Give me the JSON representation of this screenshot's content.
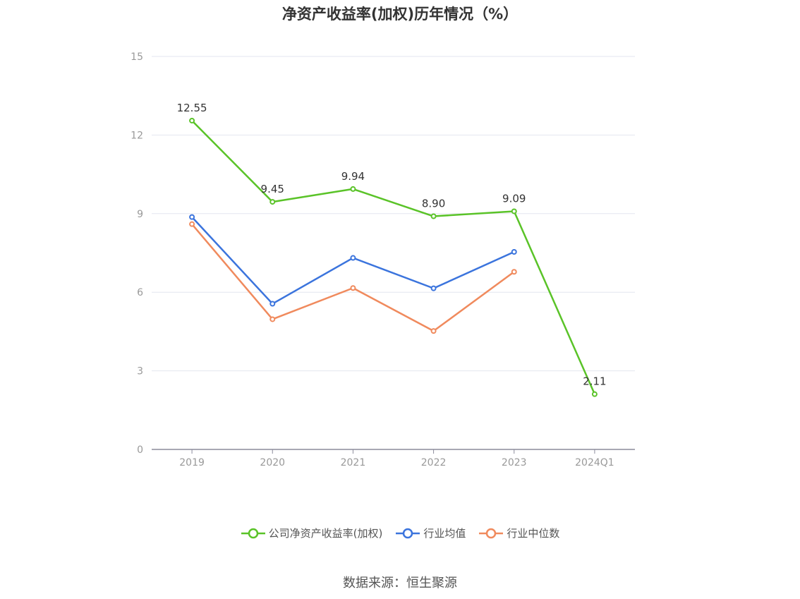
{
  "chart_data": {
    "type": "line",
    "title": "净资产收益率(加权)历年情况（%）",
    "categories": [
      "2019",
      "2020",
      "2021",
      "2022",
      "2023",
      "2024Q1"
    ],
    "ylim": [
      0,
      15
    ],
    "yticks": [
      0,
      3,
      6,
      9,
      12,
      15
    ],
    "grid": true,
    "legend_position": "bottom",
    "series": [
      {
        "name": "公司净资产收益率(加权)",
        "color": "#5ac328",
        "show_labels": true,
        "values": [
          12.55,
          9.45,
          9.94,
          8.9,
          9.09,
          2.11
        ],
        "labels": [
          "12.55",
          "9.45",
          "9.94",
          "8.90",
          "9.09",
          "2.11"
        ]
      },
      {
        "name": "行业均值",
        "color": "#3b74dd",
        "show_labels": false,
        "values": [
          8.87,
          5.56,
          7.31,
          6.15,
          7.54,
          null
        ]
      },
      {
        "name": "行业中位数",
        "color": "#f08a5d",
        "show_labels": false,
        "values": [
          8.6,
          4.97,
          6.16,
          4.52,
          6.78,
          null
        ]
      }
    ]
  },
  "source": "数据来源：恒生聚源"
}
